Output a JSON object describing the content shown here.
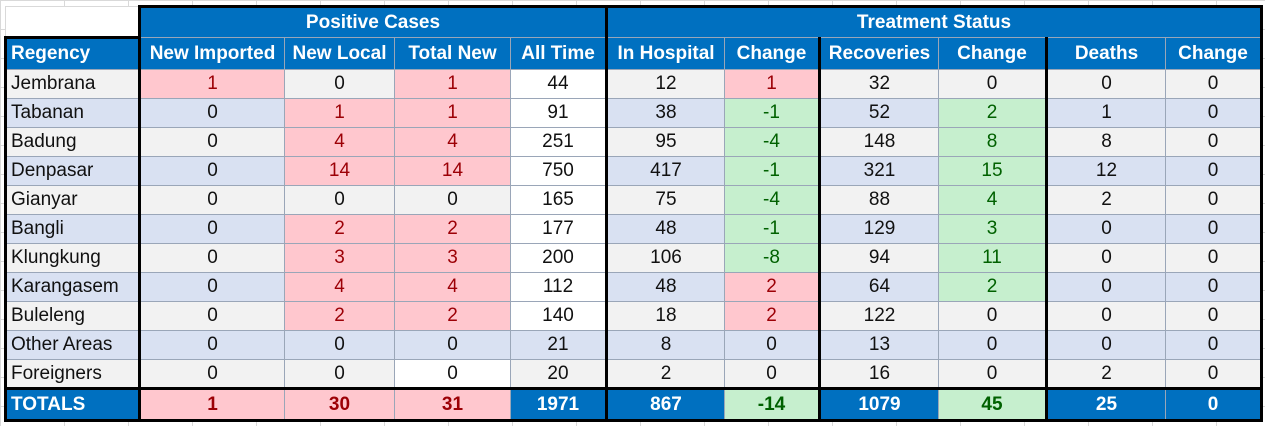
{
  "groups": {
    "positive": "Positive Cases",
    "treatment": "Treatment Status"
  },
  "headers": [
    "Regency",
    "New Imported",
    "New Local",
    "Total New",
    "All Time",
    "In Hospital",
    "Change",
    "Recoveries",
    "Change",
    "Deaths",
    "Change"
  ],
  "rows": [
    {
      "regency": "Jembrana",
      "new_imported": "1",
      "new_local": "0",
      "total_new": "1",
      "all_time": "44",
      "in_hospital": "12",
      "hosp_change": "1",
      "recoveries": "32",
      "rec_change": "0",
      "deaths": "0",
      "death_change": "0"
    },
    {
      "regency": "Tabanan",
      "new_imported": "0",
      "new_local": "1",
      "total_new": "1",
      "all_time": "91",
      "in_hospital": "38",
      "hosp_change": "-1",
      "recoveries": "52",
      "rec_change": "2",
      "deaths": "1",
      "death_change": "0"
    },
    {
      "regency": "Badung",
      "new_imported": "0",
      "new_local": "4",
      "total_new": "4",
      "all_time": "251",
      "in_hospital": "95",
      "hosp_change": "-4",
      "recoveries": "148",
      "rec_change": "8",
      "deaths": "8",
      "death_change": "0"
    },
    {
      "regency": "Denpasar",
      "new_imported": "0",
      "new_local": "14",
      "total_new": "14",
      "all_time": "750",
      "in_hospital": "417",
      "hosp_change": "-1",
      "recoveries": "321",
      "rec_change": "15",
      "deaths": "12",
      "death_change": "0"
    },
    {
      "regency": "Gianyar",
      "new_imported": "0",
      "new_local": "0",
      "total_new": "0",
      "all_time": "165",
      "in_hospital": "75",
      "hosp_change": "-4",
      "recoveries": "88",
      "rec_change": "4",
      "deaths": "2",
      "death_change": "0"
    },
    {
      "regency": "Bangli",
      "new_imported": "0",
      "new_local": "2",
      "total_new": "2",
      "all_time": "177",
      "in_hospital": "48",
      "hosp_change": "-1",
      "recoveries": "129",
      "rec_change": "3",
      "deaths": "0",
      "death_change": "0"
    },
    {
      "regency": "Klungkung",
      "new_imported": "0",
      "new_local": "3",
      "total_new": "3",
      "all_time": "200",
      "in_hospital": "106",
      "hosp_change": "-8",
      "recoveries": "94",
      "rec_change": "11",
      "deaths": "0",
      "death_change": "0"
    },
    {
      "regency": "Karangasem",
      "new_imported": "0",
      "new_local": "4",
      "total_new": "4",
      "all_time": "112",
      "in_hospital": "48",
      "hosp_change": "2",
      "recoveries": "64",
      "rec_change": "2",
      "deaths": "0",
      "death_change": "0"
    },
    {
      "regency": "Buleleng",
      "new_imported": "0",
      "new_local": "2",
      "total_new": "2",
      "all_time": "140",
      "in_hospital": "18",
      "hosp_change": "2",
      "recoveries": "122",
      "rec_change": "0",
      "deaths": "0",
      "death_change": "0"
    },
    {
      "regency": "Other Areas",
      "new_imported": "0",
      "new_local": "0",
      "total_new": "0",
      "all_time": "21",
      "in_hospital": "8",
      "hosp_change": "0",
      "recoveries": "13",
      "rec_change": "0",
      "deaths": "0",
      "death_change": "0"
    },
    {
      "regency": "Foreigners",
      "new_imported": "0",
      "new_local": "0",
      "total_new": "0",
      "all_time": "20",
      "in_hospital": "2",
      "hosp_change": "0",
      "recoveries": "16",
      "rec_change": "0",
      "deaths": "2",
      "death_change": "0"
    }
  ],
  "totals": {
    "label": "TOTALS",
    "new_imported": "1",
    "new_local": "30",
    "total_new": "31",
    "all_time": "1971",
    "in_hospital": "867",
    "hosp_change": "-14",
    "recoveries": "1079",
    "rec_change": "45",
    "deaths": "25",
    "death_change": "0"
  },
  "colors": {
    "header_blue": "#0070c0",
    "increase_fill": "#ffc7ce",
    "increase_text": "#9c0006",
    "decrease_fill": "#c6efce",
    "decrease_text": "#006100",
    "row_gray": "#f2f2f2",
    "row_blue": "#d9e1f2"
  }
}
